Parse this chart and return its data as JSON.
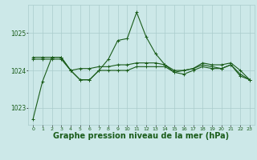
{
  "background_color": "#cce8e8",
  "grid_color": "#aacccc",
  "line_color": "#1a5c1a",
  "xlabel": "Graphe pression niveau de la mer (hPa)",
  "xlabel_fontsize": 7,
  "ytick_labels": [
    "1023",
    "1024",
    "1025"
  ],
  "yticks": [
    1023,
    1024,
    1025
  ],
  "xticks": [
    0,
    1,
    2,
    3,
    4,
    5,
    6,
    7,
    8,
    9,
    10,
    11,
    12,
    13,
    14,
    15,
    16,
    17,
    18,
    19,
    20,
    21,
    22,
    23
  ],
  "xlim": [
    -0.5,
    23.5
  ],
  "ylim": [
    1022.55,
    1025.75
  ],
  "series": [
    [
      1022.7,
      1023.7,
      1024.35,
      1024.35,
      1024.0,
      1023.75,
      1023.75,
      1024.0,
      1024.3,
      1024.8,
      1024.85,
      1025.55,
      1024.9,
      1024.45,
      1024.15,
      1023.95,
      1024.0,
      1024.05,
      1024.15,
      1024.1,
      1024.05,
      1024.15,
      1023.9,
      1023.75
    ],
    [
      1024.35,
      1024.35,
      1024.35,
      1024.35,
      1024.0,
      1024.05,
      1024.05,
      1024.1,
      1024.1,
      1024.15,
      1024.15,
      1024.2,
      1024.2,
      1024.2,
      1024.15,
      1024.0,
      1024.0,
      1024.05,
      1024.2,
      1024.15,
      1024.15,
      1024.2,
      1024.0,
      1023.75
    ],
    [
      1024.3,
      1024.3,
      1024.3,
      1024.3,
      1024.0,
      1023.75,
      1023.75,
      1024.0,
      1024.0,
      1024.0,
      1024.0,
      1024.1,
      1024.1,
      1024.1,
      1024.1,
      1023.95,
      1023.9,
      1024.0,
      1024.1,
      1024.05,
      1024.05,
      1024.15,
      1023.85,
      1023.75
    ]
  ]
}
